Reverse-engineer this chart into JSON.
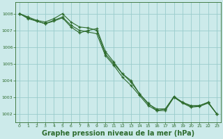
{
  "background_color": "#cceaea",
  "grid_color": "#99cccc",
  "line_color": "#2d6b2d",
  "title": "Graphe pression niveau de la mer (hPa)",
  "title_fontsize": 7.0,
  "xlim": [
    -0.5,
    23.5
  ],
  "ylim": [
    1001.5,
    1008.7
  ],
  "yticks": [
    1002,
    1003,
    1004,
    1005,
    1006,
    1007,
    1008
  ],
  "xticks": [
    0,
    1,
    2,
    3,
    4,
    5,
    6,
    7,
    8,
    9,
    10,
    11,
    12,
    13,
    14,
    15,
    16,
    17,
    18,
    19,
    20,
    21,
    22,
    23
  ],
  "series1_x": [
    0,
    1,
    2,
    3,
    4,
    5,
    6,
    7,
    8,
    9,
    10,
    11,
    12,
    13,
    14,
    15,
    16,
    17,
    18,
    19,
    20,
    21,
    22,
    23
  ],
  "series1_y": [
    1008.0,
    1007.8,
    1007.6,
    1007.5,
    1007.7,
    1008.0,
    1007.5,
    1007.2,
    1007.15,
    1007.0,
    1005.6,
    1005.0,
    1004.4,
    1003.9,
    1003.2,
    1002.6,
    1002.3,
    1002.3,
    1003.0,
    1002.7,
    1002.5,
    1002.5,
    1002.7,
    1002.0
  ],
  "series2_x": [
    0,
    1,
    2,
    3,
    4,
    5,
    6,
    7,
    8,
    9,
    10,
    11,
    12,
    13,
    14,
    15,
    16,
    17,
    18,
    19,
    20,
    21,
    22,
    23
  ],
  "series2_y": [
    1008.0,
    1007.75,
    1007.55,
    1007.4,
    1007.55,
    1007.75,
    1007.2,
    1006.85,
    1007.0,
    1007.1,
    1005.75,
    1005.1,
    1004.4,
    1004.0,
    1003.2,
    1002.65,
    1002.2,
    1002.3,
    1003.05,
    1002.7,
    1002.45,
    1002.5,
    1002.7,
    1002.0
  ],
  "series3_x": [
    0,
    1,
    2,
    3,
    4,
    5,
    6,
    7,
    8,
    9,
    10,
    11,
    12,
    13,
    14,
    15,
    16,
    17,
    18,
    19,
    20,
    21,
    22,
    23
  ],
  "series3_y": [
    1008.0,
    1007.7,
    1007.55,
    1007.4,
    1007.6,
    1007.8,
    1007.3,
    1007.0,
    1006.9,
    1006.8,
    1005.5,
    1004.9,
    1004.2,
    1003.7,
    1003.1,
    1002.5,
    1002.2,
    1002.2,
    1003.0,
    1002.65,
    1002.4,
    1002.45,
    1002.65,
    1002.0
  ]
}
